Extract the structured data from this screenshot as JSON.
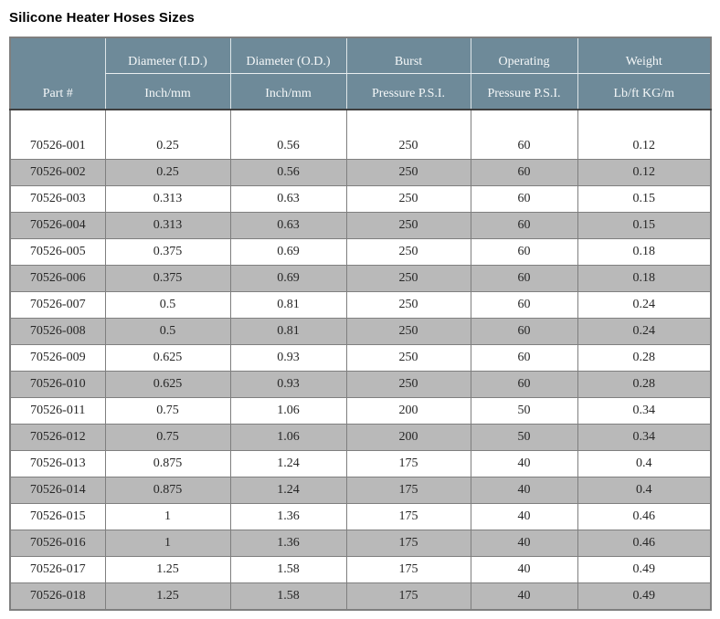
{
  "page": {
    "title": "Silicone Heater Hoses Sizes"
  },
  "colors": {
    "header_bg": "#6e8a99",
    "header_text": "#f4f7f8",
    "header_divider": "#3f3f3f",
    "header_inner_border": "#dde5e8",
    "alt_row_bg": "#b9b9b9",
    "row_bg": "#ffffff",
    "grid_border": "#7f7f7f",
    "body_text": "#262626",
    "title_text": "#000000"
  },
  "table": {
    "header": {
      "part": "Part #",
      "cols": [
        {
          "line1": "Diameter (I.D.)",
          "line2": "Inch/mm"
        },
        {
          "line1": "Diameter (O.D.)",
          "line2": "Inch/mm"
        },
        {
          "line1": "Burst",
          "line2": "Pressure P.S.I."
        },
        {
          "line1": "Operating",
          "line2": "Pressure P.S.I."
        },
        {
          "line1": "Weight",
          "line2": "Lb/ft KG/m"
        }
      ]
    },
    "rows": [
      [
        "",
        "",
        "",
        "",
        "",
        ""
      ],
      [
        "70526-001",
        "0.25",
        "0.56",
        "250",
        "60",
        "0.12"
      ],
      [
        "70526-002",
        "0.25",
        "0.56",
        "250",
        "60",
        "0.12"
      ],
      [
        "70526-003",
        "0.313",
        "0.63",
        "250",
        "60",
        "0.15"
      ],
      [
        "70526-004",
        "0.313",
        "0.63",
        "250",
        "60",
        "0.15"
      ],
      [
        "70526-005",
        "0.375",
        "0.69",
        "250",
        "60",
        "0.18"
      ],
      [
        "70526-006",
        "0.375",
        "0.69",
        "250",
        "60",
        "0.18"
      ],
      [
        "70526-007",
        "0.5",
        "0.81",
        "250",
        "60",
        "0.24"
      ],
      [
        "70526-008",
        "0.5",
        "0.81",
        "250",
        "60",
        "0.24"
      ],
      [
        "70526-009",
        "0.625",
        "0.93",
        "250",
        "60",
        "0.28"
      ],
      [
        "70526-010",
        "0.625",
        "0.93",
        "250",
        "60",
        "0.28"
      ],
      [
        "70526-011",
        "0.75",
        "1.06",
        "200",
        "50",
        "0.34"
      ],
      [
        "70526-012",
        "0.75",
        "1.06",
        "200",
        "50",
        "0.34"
      ],
      [
        "70526-013",
        "0.875",
        "1.24",
        "175",
        "40",
        "0.4"
      ],
      [
        "70526-014",
        "0.875",
        "1.24",
        "175",
        "40",
        "0.4"
      ],
      [
        "70526-015",
        "1",
        "1.36",
        "175",
        "40",
        "0.46"
      ],
      [
        "70526-016",
        "1",
        "1.36",
        "175",
        "40",
        "0.46"
      ],
      [
        "70526-017",
        "1.25",
        "1.58",
        "175",
        "40",
        "0.49"
      ],
      [
        "70526-018",
        "1.25",
        "1.58",
        "175",
        "40",
        "0.49"
      ]
    ]
  }
}
